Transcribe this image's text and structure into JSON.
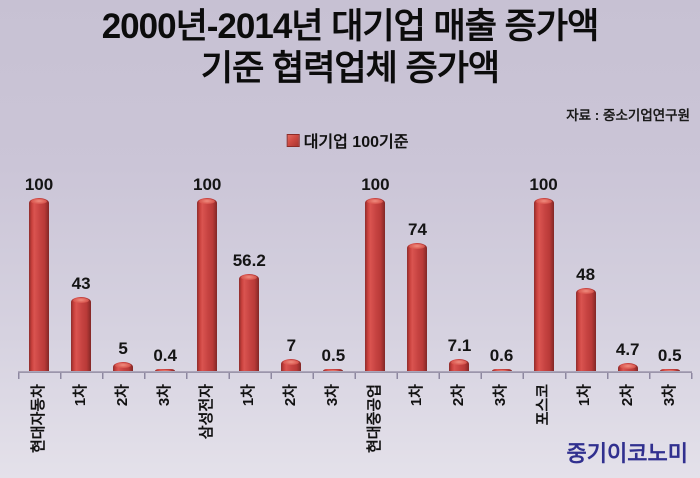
{
  "title": {
    "line1": "2000년-2014년 대기업 매출 증가액",
    "line2": "기준 협력업체 증가액"
  },
  "source": "자료 : 중소기업연구원",
  "legend": {
    "label": "대기업 100기준",
    "swatch_color": "#cf4a42"
  },
  "logo": "중기이코노미",
  "colors": {
    "background_top": "#c7c1d3",
    "background_bottom": "#e4e1ea",
    "bar": "#c64341",
    "bar_edge": "#8e2c2c",
    "bar_highlight": "#ef8d80",
    "axis": "#938da2",
    "text": "#111111",
    "logo_blue": "#31308f"
  },
  "chart_data": {
    "type": "bar",
    "title": "2000년-2014년 대기업 매출 증가액 기준 협력업체 증가액",
    "legend_entries": [
      "대기업 100기준"
    ],
    "legend_position": "top-center",
    "grid": false,
    "y_axis_visible": false,
    "ylim": [
      0,
      100
    ],
    "categories": [
      "현대자동차",
      "1차",
      "2차",
      "3차",
      "삼성전자",
      "1차",
      "2차",
      "3차",
      "현대중공업",
      "1차",
      "2차",
      "3차",
      "포스코",
      "1차",
      "2차",
      "3차"
    ],
    "values": [
      100,
      43,
      5,
      0.4,
      100,
      56.2,
      7,
      0.5,
      100,
      74,
      7.1,
      0.6,
      100,
      48,
      4.7,
      0.5
    ],
    "groups": [
      {
        "company": "현대자동차",
        "values": {
          "본사": 100,
          "1차": 43,
          "2차": 5,
          "3차": 0.4
        }
      },
      {
        "company": "삼성전자",
        "values": {
          "본사": 100,
          "1차": 56.2,
          "2차": 7,
          "3차": 0.5
        }
      },
      {
        "company": "현대중공업",
        "values": {
          "본사": 100,
          "1차": 74,
          "2차": 7.1,
          "3차": 0.6
        }
      },
      {
        "company": "포스코",
        "values": {
          "본사": 100,
          "1차": 48,
          "2차": 4.7,
          "3차": 0.5
        }
      }
    ],
    "data_labels": [
      "100",
      "43",
      "5",
      "0.4",
      "100",
      "56.2",
      "7",
      "0.5",
      "100",
      "74",
      "7.1",
      "0.6",
      "100",
      "48",
      "4.7",
      "0.5"
    ]
  }
}
